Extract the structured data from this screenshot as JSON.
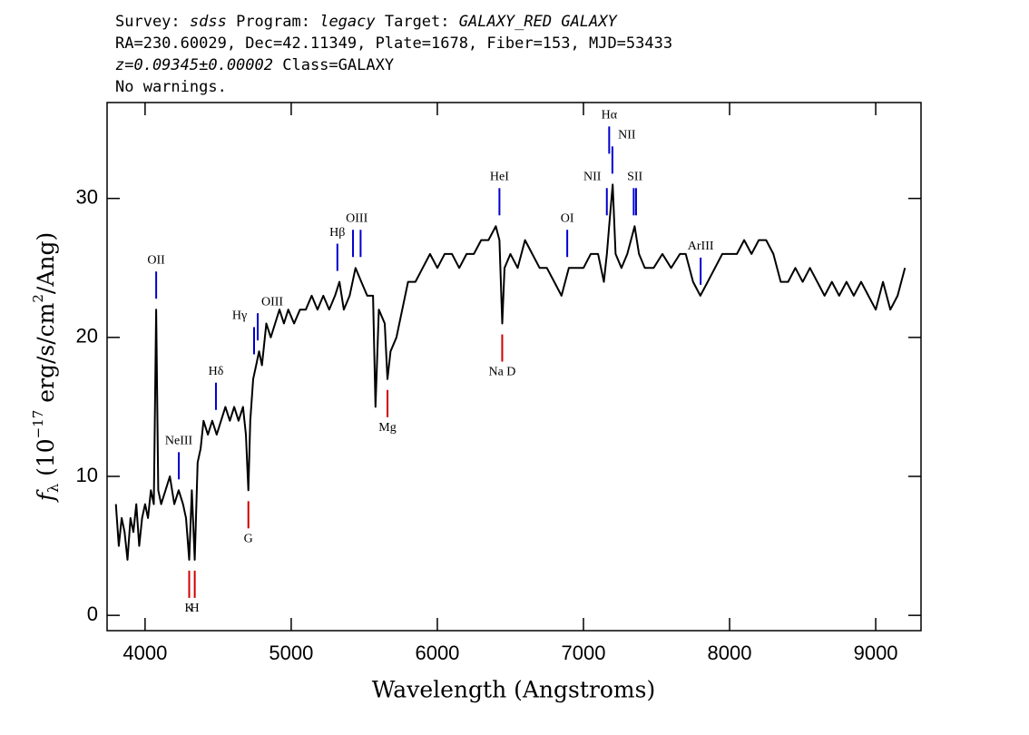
{
  "chart_data": {
    "type": "line",
    "header": [
      [
        {
          "text": "Survey: ",
          "italic": false
        },
        {
          "text": "sdss",
          "italic": true
        },
        {
          "text": " Program: ",
          "italic": false
        },
        {
          "text": "legacy",
          "italic": true
        },
        {
          "text": " Target: ",
          "italic": false
        },
        {
          "text": "GALAXY_RED GALAXY",
          "italic": true
        }
      ],
      [
        {
          "text": "RA=230.60029, Dec=42.11349, Plate=1678, Fiber=153, MJD=53433",
          "italic": false
        }
      ],
      [
        {
          "text": "z=0.09345±0.00002",
          "italic": true
        },
        {
          "text": " Class=GALAXY",
          "italic": false
        }
      ],
      [
        {
          "text": "No warnings.",
          "italic": false
        }
      ]
    ],
    "xlabel": "Wavelength (Angstroms)",
    "ylabel": {
      "symbol": "f",
      "sub": "λ",
      "open": " (10",
      "exp1": "−17",
      "mid": " erg/s/cm",
      "exp2": "2",
      "close": "/Ang)"
    },
    "xlim": [
      3740,
      9310
    ],
    "ylim": [
      -1.1,
      36.9
    ],
    "xticks": [
      4000,
      5000,
      6000,
      7000,
      8000,
      9000
    ],
    "yticks": [
      0,
      10,
      20,
      30
    ],
    "color": "#000000",
    "x": [
      3800,
      3820,
      3840,
      3860,
      3880,
      3900,
      3920,
      3940,
      3960,
      3980,
      4000,
      4020,
      4040,
      4060,
      4076,
      4090,
      4110,
      4140,
      4170,
      4200,
      4230,
      4260,
      4280,
      4302,
      4320,
      4340,
      4360,
      4380,
      4400,
      4430,
      4460,
      4490,
      4520,
      4550,
      4580,
      4610,
      4640,
      4670,
      4690,
      4707,
      4720,
      4740,
      4760,
      4780,
      4800,
      4830,
      4860,
      4890,
      4920,
      4950,
      4980,
      5020,
      5060,
      5100,
      5140,
      5180,
      5220,
      5260,
      5300,
      5330,
      5360,
      5400,
      5440,
      5480,
      5520,
      5560,
      5577,
      5600,
      5640,
      5659,
      5680,
      5720,
      5760,
      5800,
      5850,
      5900,
      5950,
      6000,
      6050,
      6100,
      6150,
      6200,
      6250,
      6300,
      6350,
      6400,
      6425,
      6444,
      6460,
      6500,
      6550,
      6600,
      6650,
      6700,
      6750,
      6800,
      6850,
      6900,
      6950,
      7000,
      7050,
      7100,
      7140,
      7160,
      7176,
      7200,
      7220,
      7260,
      7300,
      7350,
      7380,
      7420,
      7480,
      7540,
      7600,
      7660,
      7700,
      7750,
      7800,
      7850,
      7900,
      7950,
      8000,
      8050,
      8100,
      8150,
      8200,
      8250,
      8300,
      8350,
      8400,
      8450,
      8500,
      8550,
      8600,
      8650,
      8700,
      8750,
      8800,
      8850,
      8900,
      8950,
      9000,
      9050,
      9100,
      9150,
      9200
    ],
    "values": [
      8,
      5,
      7,
      6,
      4,
      7,
      6,
      8,
      5,
      7,
      8,
      7,
      9,
      8,
      22,
      9,
      8,
      9,
      10,
      8,
      9,
      8,
      7,
      4,
      9,
      4,
      11,
      12,
      14,
      13,
      14,
      13,
      14,
      15,
      14,
      15,
      14,
      15,
      13,
      9,
      14,
      17,
      18,
      19,
      18,
      21,
      20,
      21,
      22,
      21,
      22,
      21,
      22,
      22,
      23,
      22,
      23,
      22,
      23,
      24,
      22,
      23,
      25,
      24,
      23,
      23,
      15,
      22,
      21,
      17,
      19,
      20,
      22,
      24,
      24,
      25,
      26,
      25,
      26,
      26,
      25,
      26,
      26,
      27,
      27,
      28,
      27,
      21,
      25,
      26,
      25,
      27,
      26,
      25,
      25,
      24,
      23,
      25,
      25,
      25,
      26,
      26,
      24,
      26,
      28,
      31,
      26,
      25,
      26,
      28,
      26,
      25,
      25,
      26,
      25,
      26,
      26,
      24,
      23,
      24,
      25,
      26,
      26,
      26,
      27,
      26,
      27,
      27,
      26,
      24,
      24,
      25,
      24,
      25,
      24,
      23,
      24,
      23,
      24,
      23,
      24,
      23,
      22,
      24,
      22,
      23,
      25
    ],
    "annotations": [
      {
        "text": "OII",
        "color": "#0000cc",
        "x": [
          4076
        ]
      },
      {
        "text": "NeIII",
        "color": "#0000cc",
        "x": [
          4231
        ]
      },
      {
        "text": "Hδ",
        "color": "#0000cc",
        "x": [
          4485
        ]
      },
      {
        "text": "Hγ",
        "color": "#0000cc",
        "x": [
          4746
        ]
      },
      {
        "text": "OIII",
        "color": "#0000cc",
        "x": [
          4771
        ]
      },
      {
        "text": "Hβ",
        "color": "#0000cc",
        "x": [
          5316
        ]
      },
      {
        "text": "OIII",
        "color": "#0000cc",
        "x": [
          5423,
          5475
        ]
      },
      {
        "text": "HeI",
        "color": "#0000cc",
        "x": [
          6425
        ]
      },
      {
        "text": "OI",
        "color": "#0000cc",
        "x": [
          6889
        ]
      },
      {
        "text": "NII",
        "color": "#0000cc",
        "x": [
          7160
        ]
      },
      {
        "text": "Hα",
        "color": "#0000cc",
        "x": [
          7176
        ]
      },
      {
        "text": "NII",
        "color": "#0000cc",
        "x": [
          7198
        ]
      },
      {
        "text": "SII",
        "color": "#0000cc",
        "x": [
          7344,
          7360
        ]
      },
      {
        "text": "ArIII",
        "color": "#0000cc",
        "x": [
          7802
        ]
      },
      {
        "text": "K",
        "color": "#cc0000",
        "x": [
          4302
        ]
      },
      {
        "text": "H",
        "color": "#cc0000",
        "x": [
          4340
        ]
      },
      {
        "text": "G",
        "color": "#cc0000",
        "x": [
          4707
        ]
      },
      {
        "text": "Mg",
        "color": "#cc0000",
        "x": [
          5659
        ]
      },
      {
        "text": "Na D",
        "color": "#cc0000",
        "x": [
          6444
        ]
      }
    ]
  }
}
